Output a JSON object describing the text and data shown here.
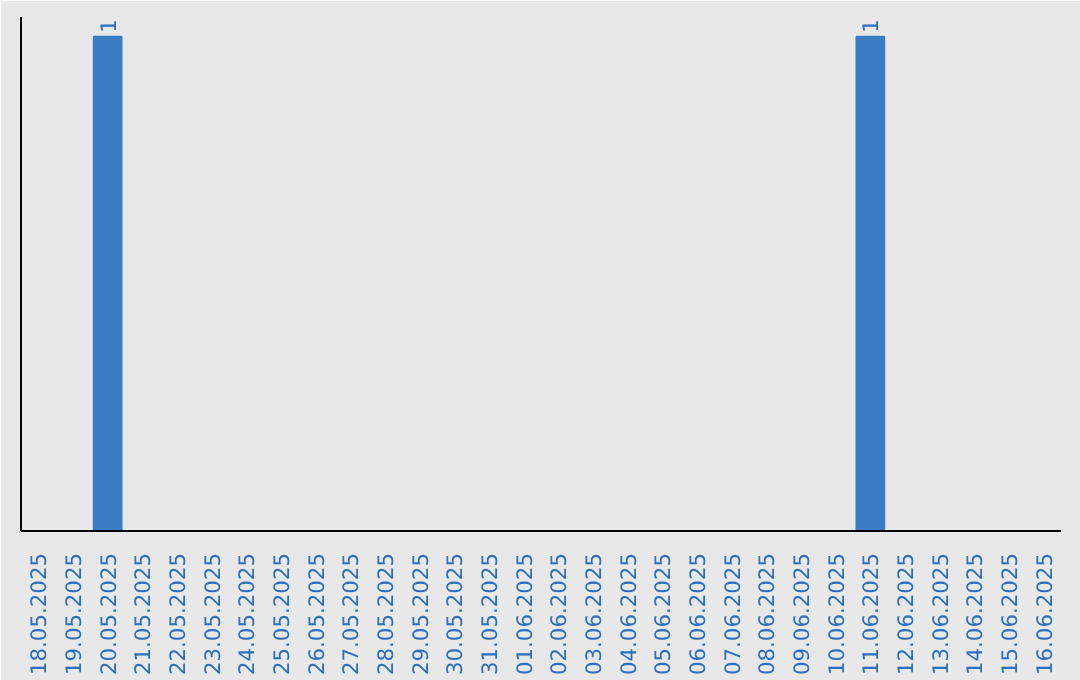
{
  "chart_data": {
    "type": "bar",
    "categories": [
      "18.05.2025",
      "19.05.2025",
      "20.05.2025",
      "21.05.2025",
      "22.05.2025",
      "23.05.2025",
      "24.05.2025",
      "25.05.2025",
      "26.05.2025",
      "27.05.2025",
      "28.05.2025",
      "29.05.2025",
      "30.05.2025",
      "31.05.2025",
      "01.06.2025",
      "02.06.2025",
      "03.06.2025",
      "04.06.2025",
      "05.06.2025",
      "06.06.2025",
      "07.06.2025",
      "08.06.2025",
      "09.06.2025",
      "10.06.2025",
      "11.06.2025",
      "12.06.2025",
      "13.06.2025",
      "14.06.2025",
      "15.06.2025",
      "16.06.2025"
    ],
    "values": [
      0,
      0,
      1,
      0,
      0,
      0,
      0,
      0,
      0,
      0,
      0,
      0,
      0,
      0,
      0,
      0,
      0,
      0,
      0,
      0,
      0,
      0,
      0,
      0,
      1,
      0,
      0,
      0,
      0,
      0
    ],
    "value_labels": [
      null,
      null,
      "1",
      null,
      null,
      null,
      null,
      null,
      null,
      null,
      null,
      null,
      null,
      null,
      null,
      null,
      null,
      null,
      null,
      null,
      null,
      null,
      null,
      null,
      "1",
      null,
      null,
      null,
      null,
      null
    ],
    "color": "#3a7dc4",
    "tick_labels": "x"
  }
}
